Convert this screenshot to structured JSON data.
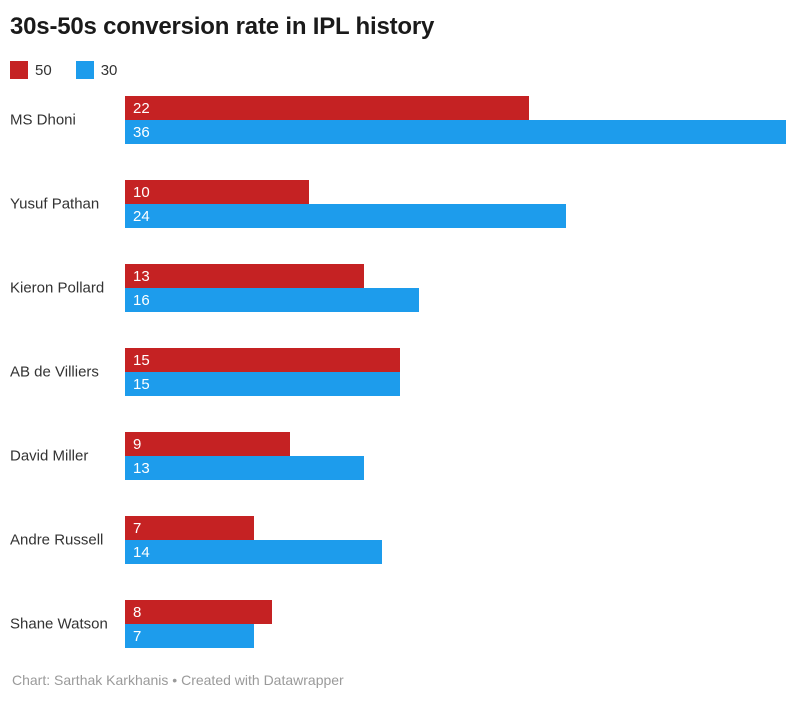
{
  "chart_data": {
    "type": "bar",
    "orientation": "horizontal",
    "title": "30s-50s conversion rate in IPL history",
    "categories": [
      "MS Dhoni",
      "Yusuf Pathan",
      "Kieron Pollard",
      "AB de Villiers",
      "David Miller",
      "Andre Russell",
      "Shane Watson"
    ],
    "series": [
      {
        "name": "50",
        "color": "#c52223",
        "values": [
          22,
          10,
          13,
          15,
          9,
          7,
          8
        ]
      },
      {
        "name": "30",
        "color": "#1d9cec",
        "values": [
          36,
          24,
          16,
          15,
          13,
          14,
          7
        ]
      }
    ],
    "xlim": [
      0,
      36
    ],
    "grid": false,
    "legend_position": "top-left",
    "value_labels": "inside-start"
  },
  "footer": {
    "text": "Chart: Sarthak Karkhanis • Created with Datawrapper"
  },
  "colors": {
    "series_50": "#c52223",
    "series_30": "#1d9cec",
    "title": "#1a1a1a",
    "category_label": "#333333",
    "value_label": "#ffffff",
    "footer": "#9a9a9a",
    "background": "#ffffff"
  }
}
